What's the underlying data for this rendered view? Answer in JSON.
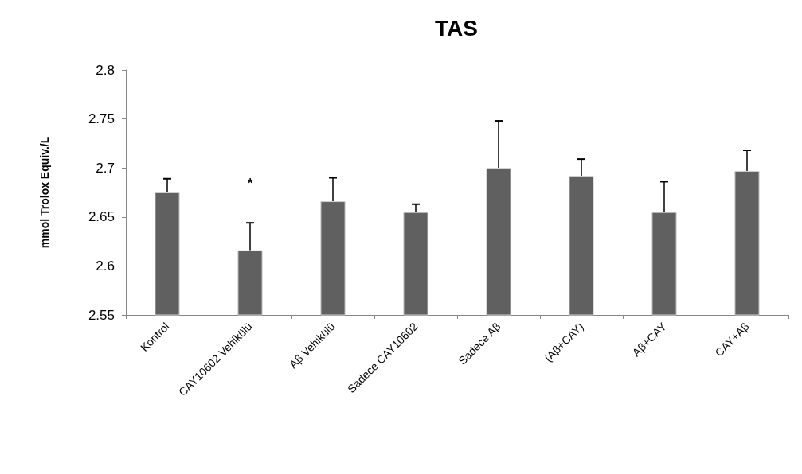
{
  "chart_data": {
    "type": "bar",
    "title": "TAS",
    "ylabel": "mmol Trolox Equiv./L",
    "categories": [
      "Kontrol",
      "CAY10602 Vehikülü",
      "Aβ Vehikülü",
      "Sadece CAY10602",
      "Sadece Aβ",
      "(Aβ+CAY)",
      "Aβ+CAY",
      "CAY+Aβ"
    ],
    "values": [
      2.675,
      2.616,
      2.666,
      2.655,
      2.7,
      2.692,
      2.655,
      2.697
    ],
    "errors": [
      [
        2.675,
        2.689
      ],
      [
        2.616,
        2.644
      ],
      [
        2.666,
        2.69
      ],
      [
        2.655,
        2.663
      ],
      [
        2.7,
        2.748
      ],
      [
        2.692,
        2.709
      ],
      [
        2.655,
        2.686
      ],
      [
        2.697,
        2.718
      ]
    ],
    "color": "#606060",
    "ylim": [
      2.55,
      2.8
    ],
    "yticks": [
      2.55,
      2.6,
      2.65,
      2.7,
      2.75,
      2.8
    ],
    "grid": false,
    "annotations": [
      "*"
    ]
  }
}
